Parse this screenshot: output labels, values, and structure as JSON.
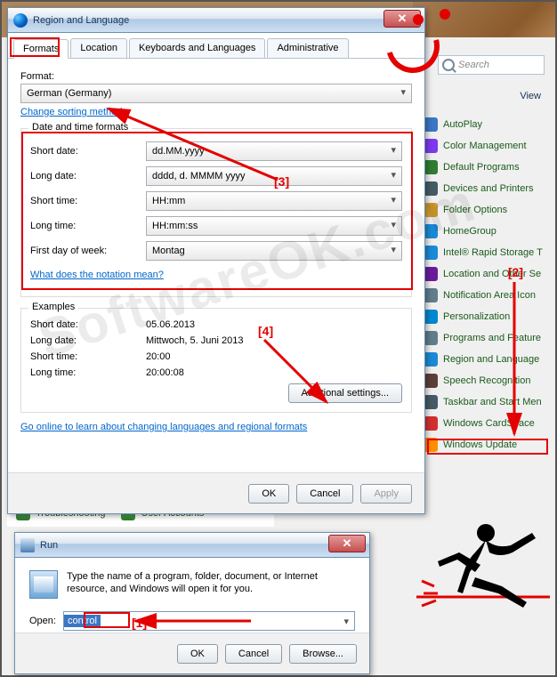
{
  "region_dialog": {
    "title": "Region and Language",
    "tabs": [
      "Formats",
      "Location",
      "Keyboards and Languages",
      "Administrative"
    ],
    "active_tab_index": 0,
    "format_label": "Format:",
    "format_value": "German (Germany)",
    "change_sort_link": "Change sorting method",
    "date_group_title": "Date and time formats",
    "rows": [
      {
        "label": "Short date:",
        "value": "dd.MM.yyyy"
      },
      {
        "label": "Long date:",
        "value": "dddd, d. MMMM yyyy"
      },
      {
        "label": "Short time:",
        "value": "HH:mm"
      },
      {
        "label": "Long time:",
        "value": "HH:mm:ss"
      },
      {
        "label": "First day of week:",
        "value": "Montag"
      }
    ],
    "notation_link": "What does the notation mean?",
    "examples_title": "Examples",
    "examples": [
      {
        "label": "Short date:",
        "value": "05.06.2013"
      },
      {
        "label": "Long date:",
        "value": "Mittwoch, 5. Juni 2013"
      },
      {
        "label": "Short time:",
        "value": "20:00"
      },
      {
        "label": "Long time:",
        "value": "20:00:08"
      }
    ],
    "additional_btn": "Additional settings...",
    "online_link": "Go online to learn about changing languages and regional formats",
    "ok": "OK",
    "cancel": "Cancel",
    "apply": "Apply"
  },
  "behind_items": {
    "a": "Troubleshooting",
    "b": "User Accounts"
  },
  "search_placeholder": "Search",
  "view_label": "View",
  "sidebar_items": [
    {
      "label": "AutoPlay",
      "color": "#3a76c4"
    },
    {
      "label": "Color Management",
      "color": "#7c3aed"
    },
    {
      "label": "Default Programs",
      "color": "#2e7d32"
    },
    {
      "label": "Devices and Printers",
      "color": "#455a64"
    },
    {
      "label": "Folder Options",
      "color": "#d39c2f"
    },
    {
      "label": "HomeGroup",
      "color": "#1b8ad6"
    },
    {
      "label": "Intel® Rapid Storage T",
      "color": "#1b8ad6"
    },
    {
      "label": "Location and Other Se",
      "color": "#6a1b9a"
    },
    {
      "label": "Notification Area Icon",
      "color": "#607d8b"
    },
    {
      "label": "Personalization",
      "color": "#0288d1"
    },
    {
      "label": "Programs and Feature",
      "color": "#607d8b"
    },
    {
      "label": "Region and Language",
      "color": "#1b8ad6"
    },
    {
      "label": "Speech Recognition",
      "color": "#5d4037"
    },
    {
      "label": "Taskbar and Start Men",
      "color": "#455a64"
    },
    {
      "label": "Windows CardSpace",
      "color": "#d32f2f"
    },
    {
      "label": "Windows Update",
      "color": "#ff8f00"
    }
  ],
  "run_dialog": {
    "title": "Run",
    "desc": "Type the name of a program, folder, document, or Internet resource, and Windows will open it for you.",
    "open_label": "Open:",
    "open_value": "control",
    "ok": "OK",
    "cancel": "Cancel",
    "browse": "Browse..."
  },
  "annotations": {
    "a1": "[1]",
    "a2": "[2]",
    "a3": "[3]",
    "a4": "[4]"
  },
  "watermark": "SoftwareOK.com",
  "colors": {
    "highlight": "#e40000"
  }
}
